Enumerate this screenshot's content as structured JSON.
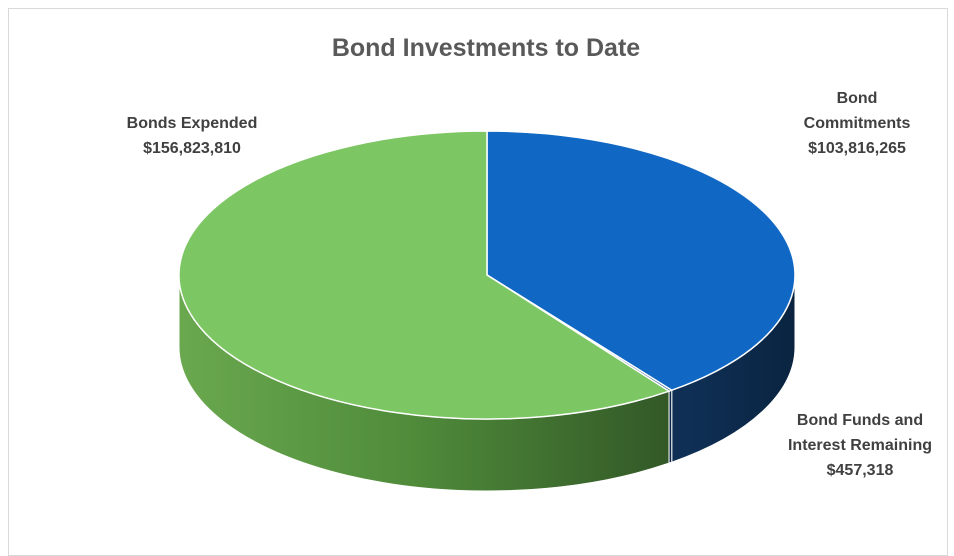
{
  "chart_data": {
    "type": "pie",
    "title": "Bond Investments to Date",
    "three_d": true,
    "slices": [
      {
        "key": "commit",
        "label_lines": [
          "Bond",
          "Commitments",
          "$103,816,265"
        ],
        "value": 103816265,
        "color": "#1068c4"
      },
      {
        "key": "remain",
        "label_lines": [
          "Bond Funds and",
          "Interest Remaining",
          "$457,318"
        ],
        "value": 457318,
        "color": "#1a4f86"
      },
      {
        "key": "expend",
        "label_lines": [
          "Bonds Expended",
          "$156,823,810"
        ],
        "value": 156823810,
        "color": "#7cc663"
      }
    ]
  }
}
